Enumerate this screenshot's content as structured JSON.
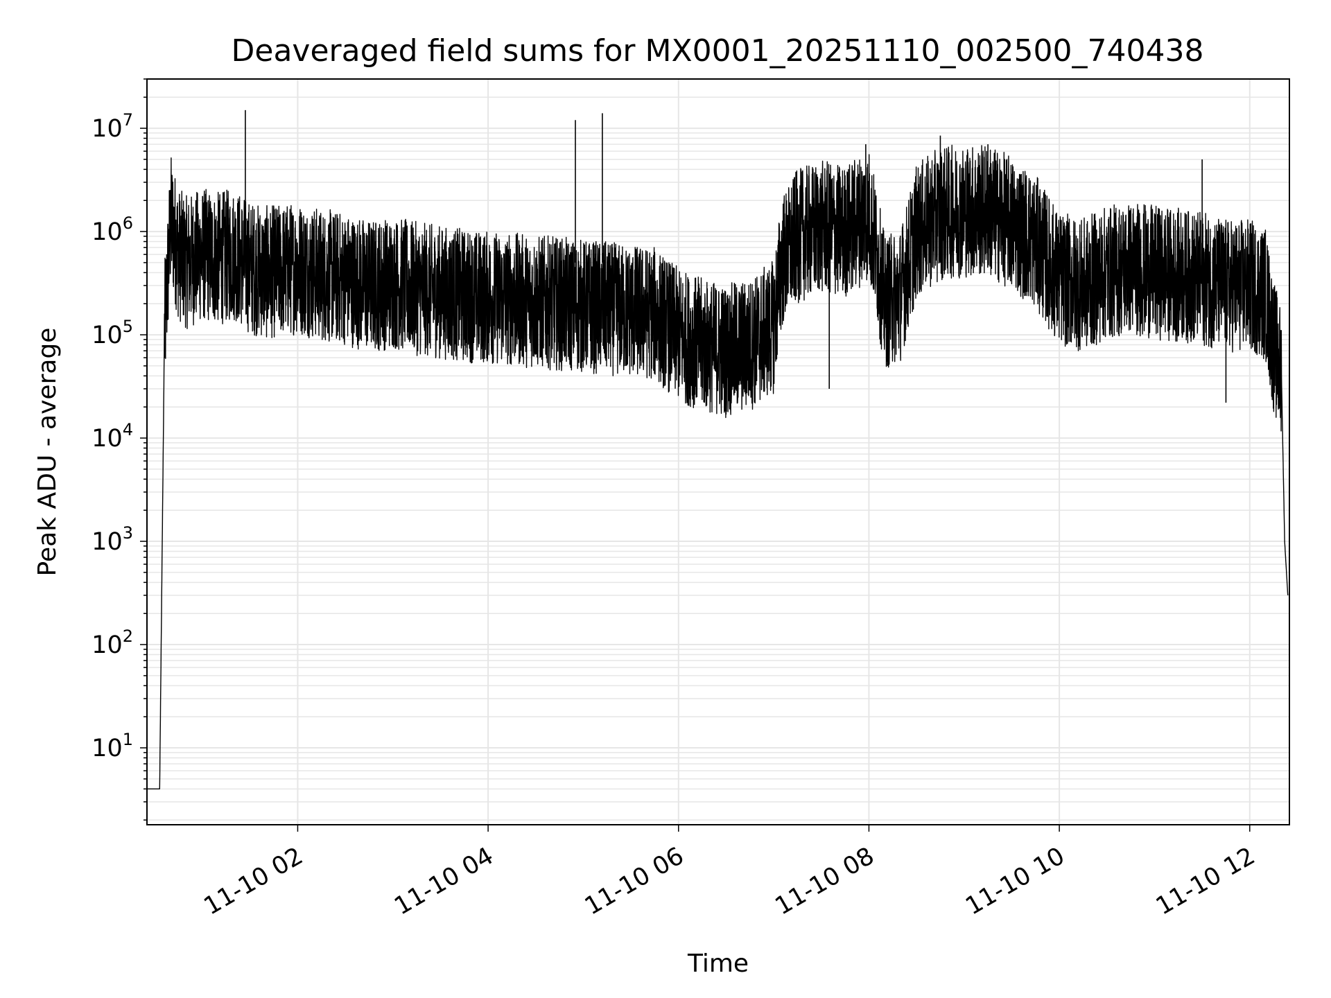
{
  "chart_data": {
    "type": "line",
    "title": "Deaveraged field sums for MX0001_20251110_002500_740438",
    "xlabel": "Time",
    "ylabel": "Peak ADU - average",
    "yscale": "log",
    "ylim": [
      1.8,
      30000000
    ],
    "xlim": [
      "2025-11-10 00:25",
      "2025-11-10 12:25"
    ],
    "x_ticks": [
      {
        "value": "2025-11-10 02:00",
        "label": "11-10 02"
      },
      {
        "value": "2025-11-10 04:00",
        "label": "11-10 04"
      },
      {
        "value": "2025-11-10 06:00",
        "label": "11-10 06"
      },
      {
        "value": "2025-11-10 08:00",
        "label": "11-10 08"
      },
      {
        "value": "2025-11-10 10:00",
        "label": "11-10 10"
      },
      {
        "value": "2025-11-10 12:00",
        "label": "11-10 12"
      }
    ],
    "y_ticks": [
      {
        "value": 10,
        "base": "10",
        "exp": "1"
      },
      {
        "value": 100,
        "base": "10",
        "exp": "2"
      },
      {
        "value": 1000,
        "base": "10",
        "exp": "3"
      },
      {
        "value": 10000,
        "base": "10",
        "exp": "4"
      },
      {
        "value": 100000,
        "base": "10",
        "exp": "5"
      },
      {
        "value": 1000000,
        "base": "10",
        "exp": "6"
      },
      {
        "value": 10000000,
        "base": "10",
        "exp": "7"
      }
    ],
    "grid": true,
    "line_color": "#000000",
    "grid_color": "#e6e6e6",
    "series": [
      {
        "x": [
          "2025-11-10 00:25",
          "2025-11-10 00:30",
          "2025-11-10 00:33",
          "2025-11-10 00:36",
          "2025-11-10 00:40",
          "2025-11-10 00:45",
          "2025-11-10 00:50",
          "2025-11-10 00:55",
          "2025-11-10 01:00",
          "2025-11-10 01:10",
          "2025-11-10 01:20",
          "2025-11-10 01:30",
          "2025-11-10 01:40",
          "2025-11-10 01:50",
          "2025-11-10 02:00",
          "2025-11-10 02:15",
          "2025-11-10 02:30",
          "2025-11-10 02:45",
          "2025-11-10 03:00",
          "2025-11-10 03:15",
          "2025-11-10 03:30",
          "2025-11-10 03:45",
          "2025-11-10 04:00",
          "2025-11-10 04:15",
          "2025-11-10 04:30",
          "2025-11-10 04:45",
          "2025-11-10 05:00",
          "2025-11-10 05:15",
          "2025-11-10 05:30",
          "2025-11-10 05:45",
          "2025-11-10 06:00",
          "2025-11-10 06:15",
          "2025-11-10 06:30",
          "2025-11-10 06:45",
          "2025-11-10 07:00",
          "2025-11-10 07:05",
          "2025-11-10 07:15",
          "2025-11-10 07:30",
          "2025-11-10 07:45",
          "2025-11-10 08:00",
          "2025-11-10 08:05",
          "2025-11-10 08:10",
          "2025-11-10 08:20",
          "2025-11-10 08:30",
          "2025-11-10 08:45",
          "2025-11-10 09:00",
          "2025-11-10 09:15",
          "2025-11-10 09:30",
          "2025-11-10 09:45",
          "2025-11-10 10:00",
          "2025-11-10 10:15",
          "2025-11-10 10:30",
          "2025-11-10 10:45",
          "2025-11-10 11:00",
          "2025-11-10 11:15",
          "2025-11-10 11:30",
          "2025-11-10 11:45",
          "2025-11-10 12:00",
          "2025-11-10 12:10",
          "2025-11-10 12:15",
          "2025-11-10 12:20",
          "2025-11-10 12:22",
          "2025-11-10 12:24"
        ],
        "y": [
          4,
          4,
          4,
          100000,
          1300000,
          600000,
          500000,
          550000,
          600000,
          550000,
          600000,
          450000,
          400000,
          420000,
          450000,
          380000,
          350000,
          300000,
          320000,
          280000,
          260000,
          240000,
          230000,
          220000,
          210000,
          200000,
          190000,
          180000,
          170000,
          160000,
          100000,
          80000,
          70000,
          80000,
          120000,
          500000,
          900000,
          1100000,
          1000000,
          1500000,
          600000,
          200000,
          250000,
          1000000,
          1500000,
          1600000,
          1600000,
          1200000,
          800000,
          350000,
          300000,
          400000,
          450000,
          400000,
          380000,
          350000,
          300000,
          300000,
          250000,
          80000,
          40000,
          1000,
          300
        ]
      }
    ],
    "spikes": [
      {
        "x": "2025-11-10 01:27",
        "y": 15000000
      },
      {
        "x": "2025-11-10 04:55",
        "y": 12000000
      },
      {
        "x": "2025-11-10 05:12",
        "y": 14000000
      },
      {
        "x": "2025-11-10 07:58",
        "y": 7000000
      },
      {
        "x": "2025-11-10 08:45",
        "y": 8500000
      },
      {
        "x": "2025-11-10 09:15",
        "y": 7000000
      },
      {
        "x": "2025-11-10 11:30",
        "y": 5000000
      },
      {
        "x": "2025-11-10 07:35",
        "y": 30000
      },
      {
        "x": "2025-11-10 11:45",
        "y": 22000
      }
    ]
  }
}
